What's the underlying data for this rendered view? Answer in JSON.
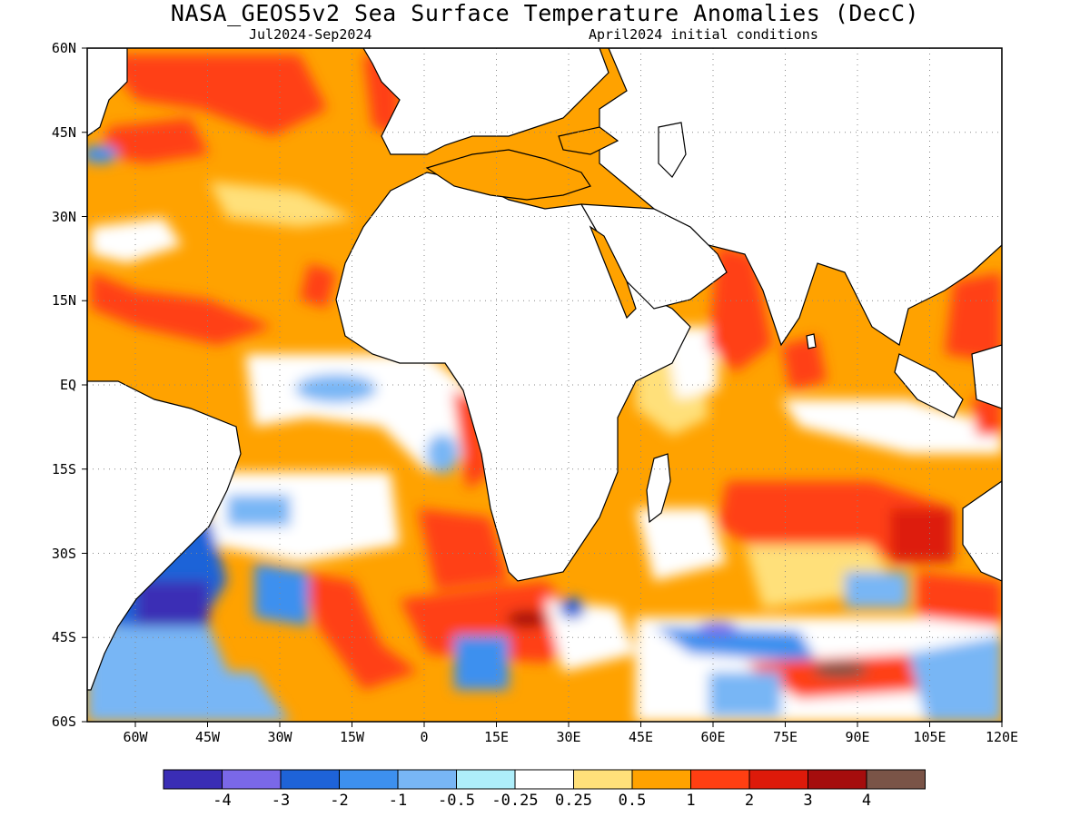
{
  "header": {
    "title": "NASA_GEOS5v2 Sea Surface Temperature Anomalies (DecC)",
    "period": "Jul2024-Sep2024",
    "init": "April2024 initial conditions"
  },
  "axes": {
    "lat_labels": [
      "60N",
      "45N",
      "30N",
      "15N",
      "EQ",
      "15S",
      "30S",
      "45S",
      "60S"
    ],
    "lat_values": [
      60,
      45,
      30,
      15,
      0,
      -15,
      -30,
      -45,
      -60
    ],
    "lon_labels": [
      "60W",
      "45W",
      "30W",
      "15W",
      "0",
      "15E",
      "30E",
      "45E",
      "60E",
      "75E",
      "90E",
      "105E",
      "120E"
    ],
    "lon_values": [
      -60,
      -45,
      -30,
      -15,
      0,
      15,
      30,
      45,
      60,
      75,
      90,
      105,
      120
    ],
    "lon_range": [
      -70,
      120
    ],
    "lat_range": [
      -60,
      60
    ]
  },
  "colorbar": {
    "colors": [
      "#3a2db5",
      "#7a68e8",
      "#1e63d8",
      "#3d90ef",
      "#78b6f5",
      "#aeeefa",
      "#ffffff",
      "#ffe07a",
      "#ffa200",
      "#ff3f12",
      "#dd1a0a",
      "#a50d0d",
      "#7a5447"
    ],
    "labels": [
      "-4",
      "-3",
      "-2",
      "-1",
      "-0.5",
      "-0.25",
      "0.25",
      "0.5",
      "1",
      "2",
      "3",
      "4"
    ]
  }
}
